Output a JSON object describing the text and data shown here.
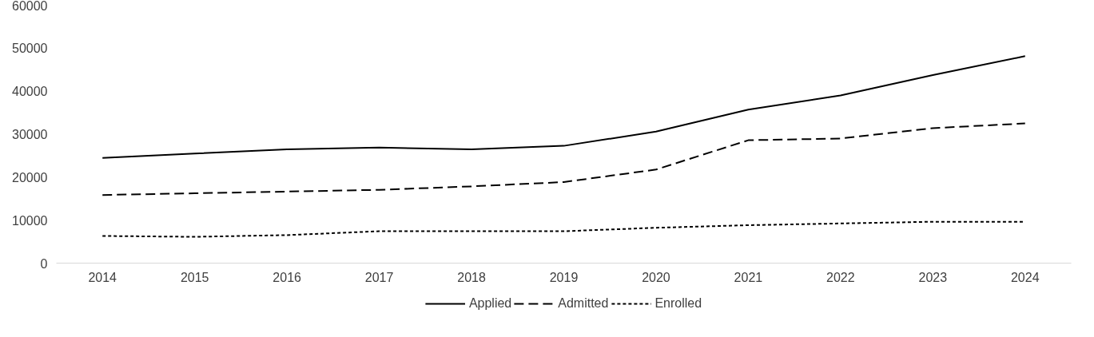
{
  "chart_data": {
    "type": "line",
    "categories": [
      "2014",
      "2015",
      "2016",
      "2017",
      "2018",
      "2019",
      "2020",
      "2021",
      "2022",
      "2023",
      "2024"
    ],
    "series": [
      {
        "name": "Applied",
        "color": "#000000",
        "line_style": "solid",
        "values": [
          24400,
          25400,
          26400,
          26800,
          26400,
          27200,
          30500,
          35600,
          38900,
          43600,
          48000
        ]
      },
      {
        "name": "Admitted",
        "color": "#000000",
        "line_style": "dashed",
        "values": [
          15800,
          16200,
          16600,
          17000,
          17800,
          18800,
          21700,
          28500,
          28900,
          31300,
          32400
        ]
      },
      {
        "name": "Enrolled",
        "color": "#000000",
        "line_style": "dotted",
        "values": [
          6300,
          6100,
          6500,
          7400,
          7400,
          7400,
          8200,
          8800,
          9200,
          9600,
          9600
        ]
      }
    ],
    "ylim": [
      0,
      60000
    ],
    "yticks": [
      0,
      10000,
      20000,
      30000,
      40000,
      50000,
      60000
    ],
    "grid": false,
    "legend": "bottom"
  }
}
